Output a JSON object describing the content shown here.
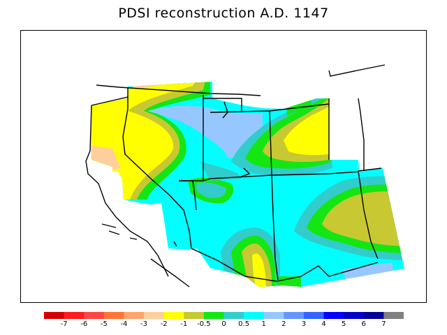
{
  "title": "PDSI reconstruction A.D. 1147",
  "legend": {
    "colors": [
      "#d40000",
      "#ff1b1b",
      "#ff4545",
      "#ff7535",
      "#ffa36b",
      "#ffcf9b",
      "#ffff00",
      "#c8c832",
      "#14e614",
      "#32cccc",
      "#00ffff",
      "#96c8ff",
      "#6496ff",
      "#3264ff",
      "#0000ff",
      "#0000c8",
      "#000096",
      "#808080"
    ],
    "labels": [
      "-7",
      "-6",
      "-5",
      "-4",
      "-3",
      "-2",
      "-1",
      "-0.5",
      "0",
      "0.5",
      "1",
      "2",
      "3",
      "4",
      "5",
      "6",
      "7"
    ]
  },
  "colors": {
    "yellow": "#ffff00",
    "olive": "#c8c832",
    "green": "#14e614",
    "teal": "#32cccc",
    "cyan": "#00ffff",
    "lightblue": "#96c8ff",
    "peach": "#ffcf9b"
  }
}
